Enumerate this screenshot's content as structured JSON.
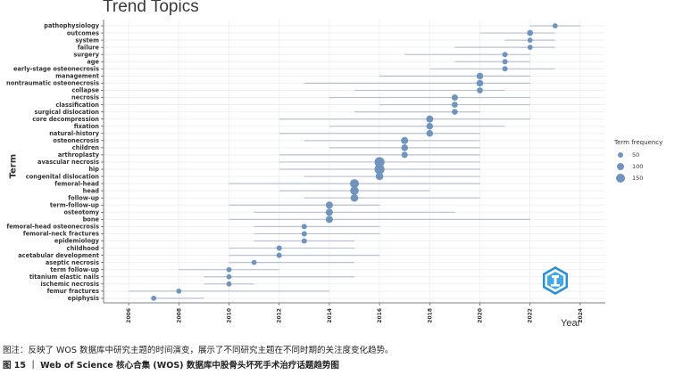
{
  "chart_data": {
    "type": "scatter",
    "title": "Trend Topics",
    "xlabel": "Year",
    "ylabel": "Term",
    "xlim": [
      2005,
      2025
    ],
    "x_ticks": [
      "2006",
      "2008",
      "2010",
      "2012",
      "2014",
      "2016",
      "2018",
      "2020",
      "2022",
      "2024"
    ],
    "grid": true,
    "colors": {
      "point": "#6f94be",
      "range": "#b8c1d4"
    },
    "legend": {
      "title": "Term frequency",
      "placement": "right",
      "entries": [
        {
          "label": "50",
          "value": 50
        },
        {
          "label": "100",
          "value": 100
        },
        {
          "label": "150",
          "value": 150
        }
      ]
    },
    "terms": [
      {
        "term": "pathophysiology",
        "year": 2023,
        "start": 2022,
        "end": 2024,
        "frequency": 35
      },
      {
        "term": "outcomes",
        "year": 2022,
        "start": 2020,
        "end": 2023,
        "frequency": 55
      },
      {
        "term": "system",
        "year": 2022,
        "start": 2021,
        "end": 2023,
        "frequency": 35
      },
      {
        "term": "failure",
        "year": 2022,
        "start": 2019,
        "end": 2023,
        "frequency": 35
      },
      {
        "term": "surgery",
        "year": 2021,
        "start": 2017,
        "end": 2022,
        "frequency": 40
      },
      {
        "term": "age",
        "year": 2021,
        "start": 2019,
        "end": 2022,
        "frequency": 40
      },
      {
        "term": "early-stage osteonecrosis",
        "year": 2021,
        "start": 2018,
        "end": 2023,
        "frequency": 40
      },
      {
        "term": "management",
        "year": 2020,
        "start": 2016,
        "end": 2022,
        "frequency": 70
      },
      {
        "term": "nontraumatic osteonecrosis",
        "year": 2020,
        "start": 2013,
        "end": 2022,
        "frequency": 70
      },
      {
        "term": "collapse",
        "year": 2020,
        "start": 2015,
        "end": 2021,
        "frequency": 55
      },
      {
        "term": "necrosis",
        "year": 2019,
        "start": 2014,
        "end": 2022,
        "frequency": 60
      },
      {
        "term": "classification",
        "year": 2019,
        "start": 2016,
        "end": 2022,
        "frequency": 55
      },
      {
        "term": "surgical dislocation",
        "year": 2019,
        "start": 2015,
        "end": 2020,
        "frequency": 50
      },
      {
        "term": "core decompression",
        "year": 2018,
        "start": 2012,
        "end": 2022,
        "frequency": 80
      },
      {
        "term": "fixation",
        "year": 2018,
        "start": 2014,
        "end": 2021,
        "frequency": 70
      },
      {
        "term": "natural-history",
        "year": 2018,
        "start": 2012,
        "end": 2020,
        "frequency": 70
      },
      {
        "term": "osteonecrosis",
        "year": 2017,
        "start": 2013,
        "end": 2020,
        "frequency": 80
      },
      {
        "term": "children",
        "year": 2017,
        "start": 2014,
        "end": 2020,
        "frequency": 70
      },
      {
        "term": "arthroplasty",
        "year": 2017,
        "start": 2012,
        "end": 2020,
        "frequency": 60
      },
      {
        "term": "avascular necrosis",
        "year": 2016,
        "start": 2012,
        "end": 2020,
        "frequency": 160
      },
      {
        "term": "hip",
        "year": 2016,
        "start": 2012,
        "end": 2020,
        "frequency": 150
      },
      {
        "term": "congenital dislocation",
        "year": 2016,
        "start": 2013,
        "end": 2020,
        "frequency": 90
      },
      {
        "term": "femoral-head",
        "year": 2015,
        "start": 2010,
        "end": 2020,
        "frequency": 120
      },
      {
        "term": "head",
        "year": 2015,
        "start": 2012,
        "end": 2018,
        "frequency": 110
      },
      {
        "term": "follow-up",
        "year": 2015,
        "start": 2013,
        "end": 2020,
        "frequency": 90
      },
      {
        "term": "term-follow-up",
        "year": 2014,
        "start": 2010,
        "end": 2016,
        "frequency": 80
      },
      {
        "term": "osteotomy",
        "year": 2014,
        "start": 2011,
        "end": 2019,
        "frequency": 80
      },
      {
        "term": "bone",
        "year": 2014,
        "start": 2010,
        "end": 2022,
        "frequency": 80
      },
      {
        "term": "femoral-head osteonecrosis",
        "year": 2013,
        "start": 2011,
        "end": 2016,
        "frequency": 40
      },
      {
        "term": "femoral-neck fractures",
        "year": 2013,
        "start": 2011,
        "end": 2016,
        "frequency": 40
      },
      {
        "term": "epidemiology",
        "year": 2013,
        "start": 2011,
        "end": 2015,
        "frequency": 40
      },
      {
        "term": "childhood",
        "year": 2012,
        "start": 2010,
        "end": 2015,
        "frequency": 40
      },
      {
        "term": "acetabular development",
        "year": 2012,
        "start": 2010,
        "end": 2016,
        "frequency": 40
      },
      {
        "term": "aseptic necrosis",
        "year": 2011,
        "start": 2010,
        "end": 2015,
        "frequency": 35
      },
      {
        "term": "term follow-up",
        "year": 2010,
        "start": 2008,
        "end": 2012,
        "frequency": 35
      },
      {
        "term": "titanium elastic nails",
        "year": 2010,
        "start": 2009,
        "end": 2015,
        "frequency": 35
      },
      {
        "term": "ischemic necrosis",
        "year": 2010,
        "start": 2009,
        "end": 2011,
        "frequency": 35
      },
      {
        "term": "femur fractures",
        "year": 2008,
        "start": 2006,
        "end": 2014,
        "frequency": 35
      },
      {
        "term": "epiphysis",
        "year": 2007,
        "start": 2007,
        "end": 2009,
        "frequency": 35
      }
    ]
  },
  "caption": {
    "note": "图注：反映了 WOS 数据库中研究主题的时间演变，展示了不同研究主题在不同时期的关注度变化趋势。",
    "figure_title": "图 15 ｜ Web of Science 核心合集 (WOS) 数据库中股骨头坏死手术治疗话题趋势图"
  }
}
